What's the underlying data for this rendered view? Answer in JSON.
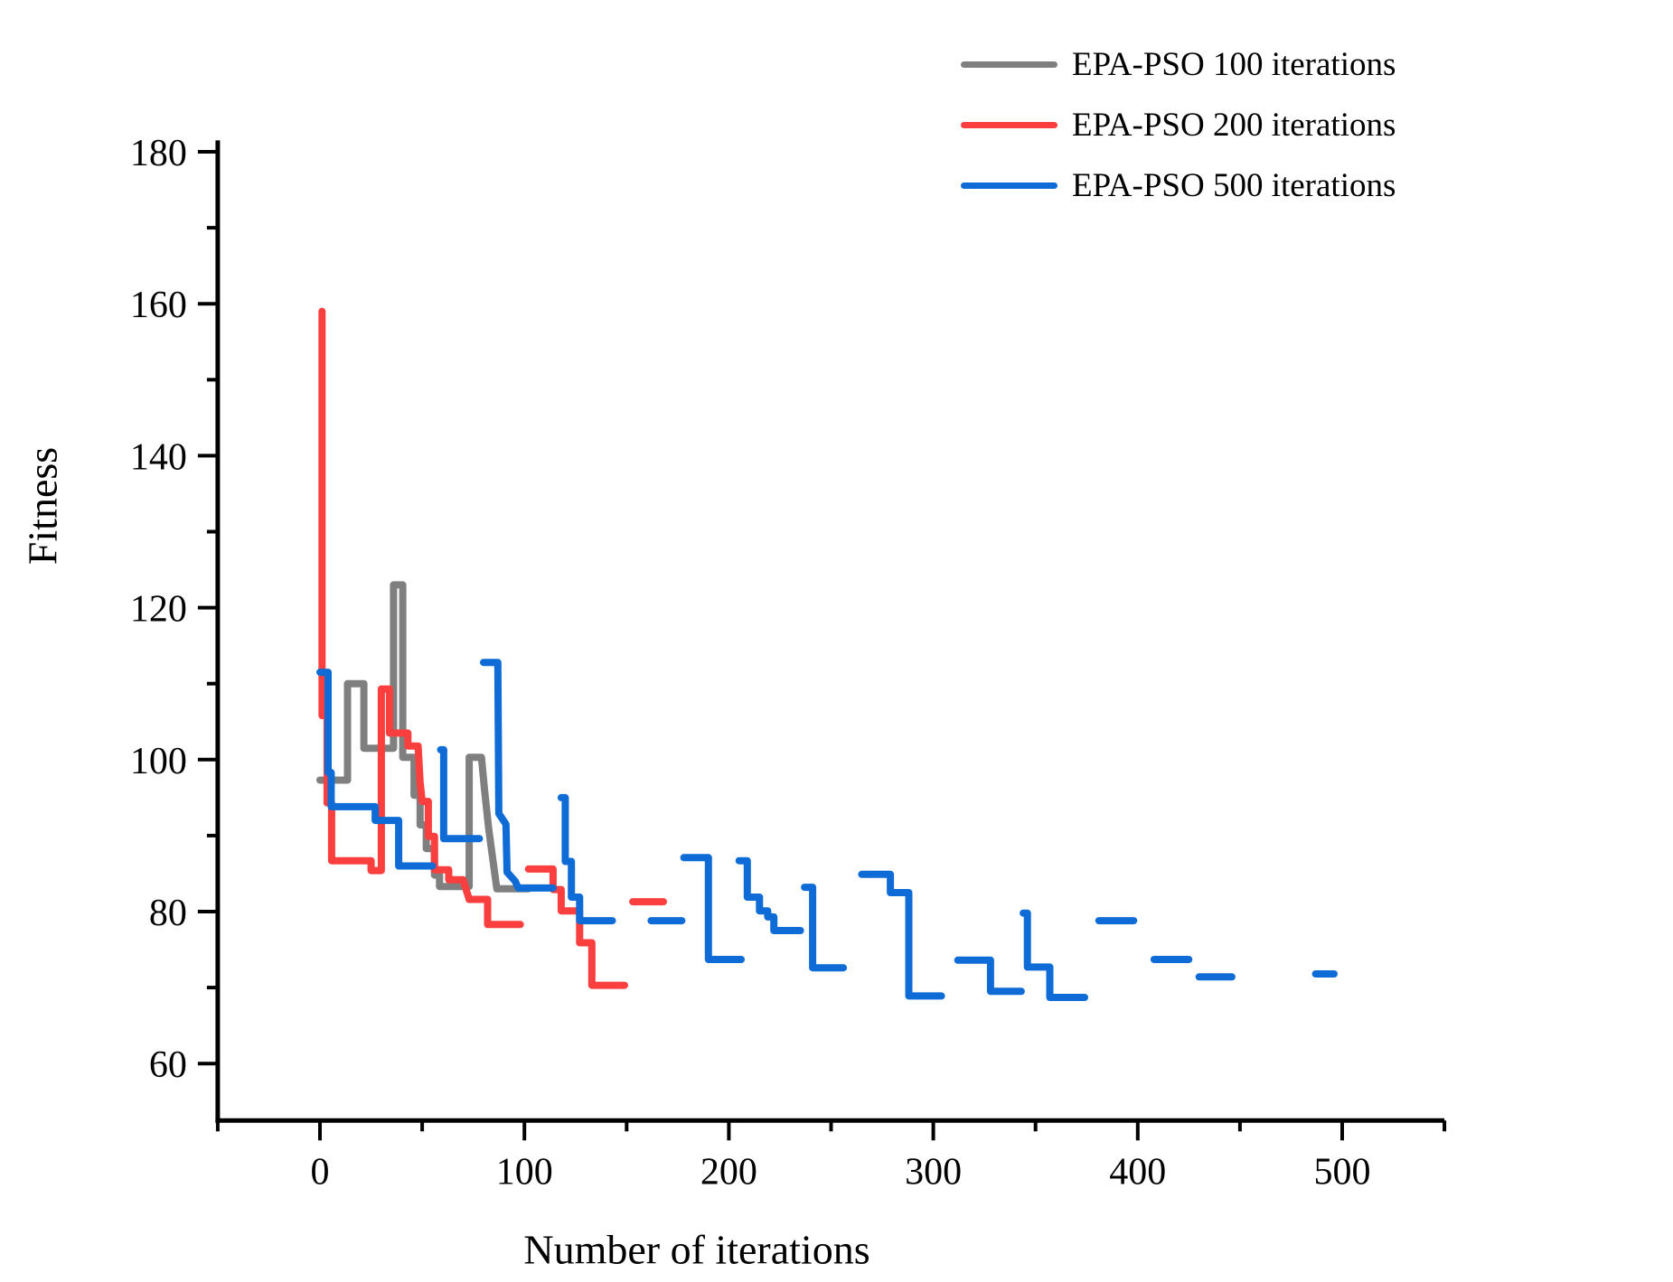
{
  "chart_data": {
    "type": "line",
    "title": "",
    "xlabel": "Number of iterations",
    "ylabel": "Fitness",
    "grid": false,
    "legend_position": "top-right",
    "x_axis": {
      "min": -50,
      "max": 550,
      "major_ticks": [
        0,
        100,
        200,
        300,
        400,
        500
      ],
      "minor_ticks": [
        -50,
        50,
        150,
        250,
        350,
        450,
        550
      ]
    },
    "y_axis": {
      "min": 52.5,
      "max": 181.5,
      "major_ticks": [
        60,
        80,
        100,
        120,
        140,
        160,
        180
      ],
      "minor_ticks": [
        70,
        90,
        110,
        130,
        150,
        170
      ]
    },
    "series": [
      {
        "name": "EPA-PSO 100 iterations",
        "color": "#7f7f7f",
        "segments": [
          [
            [
              0,
              97.3
            ],
            [
              13.5,
              97.3
            ],
            [
              13.5,
              110
            ],
            [
              21.5,
              110
            ],
            [
              21.5,
              101.5
            ],
            [
              36,
              101.5
            ],
            [
              36,
              123
            ],
            [
              40.5,
              123
            ],
            [
              40.5,
              100.3
            ],
            [
              46,
              100.3
            ],
            [
              46,
              95.3
            ],
            [
              49,
              95.3
            ],
            [
              49,
              91.4
            ],
            [
              52,
              91.4
            ],
            [
              52,
              88.3
            ],
            [
              56,
              88.3
            ],
            [
              56,
              84.8
            ],
            [
              58.5,
              84.8
            ],
            [
              58.5,
              83.3
            ],
            [
              73,
              83.3
            ],
            [
              73,
              100.3
            ],
            [
              79,
              100.3
            ],
            [
              80.5,
              96
            ],
            [
              82.5,
              91
            ],
            [
              84.5,
              87
            ],
            [
              86.5,
              83
            ],
            [
              102,
              83
            ]
          ]
        ]
      },
      {
        "name": "EPA-PSO 200 iterations",
        "color": "#fb3e3e",
        "segments": [
          [
            [
              1,
              159
            ],
            [
              1,
              105.8
            ],
            [
              3.5,
              105.8
            ],
            [
              3.5,
              94.3
            ],
            [
              5.7,
              94.3
            ],
            [
              5.7,
              86.7
            ],
            [
              25,
              86.7
            ],
            [
              25,
              85.4
            ],
            [
              30,
              85.4
            ],
            [
              30,
              109.3
            ],
            [
              34,
              109.3
            ],
            [
              34,
              103.5
            ],
            [
              43,
              103.5
            ],
            [
              43,
              101.8
            ],
            [
              48,
              101.8
            ],
            [
              49,
              97
            ],
            [
              50,
              94.5
            ],
            [
              53,
              94.5
            ],
            [
              53,
              89.9
            ],
            [
              56,
              89.9
            ],
            [
              56,
              85.5
            ],
            [
              63,
              85.5
            ],
            [
              63,
              84.2
            ],
            [
              70,
              84.2
            ],
            [
              73,
              81.6
            ],
            [
              82,
              81.6
            ],
            [
              82,
              78.3
            ],
            [
              98,
              78.3
            ]
          ],
          [
            [
              102,
              85.6
            ],
            [
              114,
              85.6
            ],
            [
              114,
              82.9
            ],
            [
              118,
              82.9
            ],
            [
              118,
              80.1
            ],
            [
              127,
              80.1
            ],
            [
              127,
              75.9
            ],
            [
              133,
              75.9
            ],
            [
              133,
              70.3
            ],
            [
              149,
              70.3
            ]
          ],
          [
            [
              153,
              81.3
            ],
            [
              168,
              81.3
            ]
          ]
        ]
      },
      {
        "name": "EPA-PSO 500 iterations",
        "color": "#0f6cd6",
        "segments": [
          [
            [
              0,
              111.5
            ],
            [
              4,
              111.5
            ],
            [
              4,
              98.3
            ],
            [
              5.5,
              98.3
            ],
            [
              5.5,
              93.8
            ],
            [
              27,
              93.8
            ],
            [
              27,
              92
            ],
            [
              38.5,
              92
            ],
            [
              38.5,
              86
            ],
            [
              55,
              86
            ]
          ],
          [
            [
              59,
              101.3
            ],
            [
              60.5,
              101.3
            ],
            [
              60.5,
              89.6
            ],
            [
              78,
              89.6
            ]
          ],
          [
            [
              80,
              112.8
            ],
            [
              87,
              112.8
            ],
            [
              87.5,
              92.9
            ],
            [
              91,
              91.5
            ],
            [
              91.5,
              85.2
            ],
            [
              95.5,
              84
            ],
            [
              97,
              83.1
            ],
            [
              114,
              83.1
            ]
          ],
          [
            [
              118,
              95
            ],
            [
              120,
              95
            ],
            [
              120,
              86.6
            ],
            [
              123,
              86.6
            ],
            [
              123,
              81.9
            ],
            [
              127,
              81.9
            ],
            [
              127,
              78.8
            ],
            [
              143,
              78.8
            ]
          ],
          [
            [
              162,
              78.8
            ],
            [
              177,
              78.8
            ]
          ],
          [
            [
              178,
              87.1
            ],
            [
              190,
              87.1
            ],
            [
              190,
              73.7
            ],
            [
              206,
              73.7
            ]
          ],
          [
            [
              205,
              86.7
            ],
            [
              209,
              86.7
            ],
            [
              209,
              81.9
            ],
            [
              215,
              81.9
            ],
            [
              215,
              80.1
            ],
            [
              219,
              80.1
            ],
            [
              219,
              79.3
            ],
            [
              222,
              79.3
            ],
            [
              222,
              77.5
            ],
            [
              235,
              77.5
            ]
          ],
          [
            [
              237,
              83.2
            ],
            [
              241,
              83.2
            ],
            [
              241,
              72.6
            ],
            [
              256,
              72.6
            ]
          ],
          [
            [
              265,
              84.9
            ],
            [
              279,
              84.9
            ],
            [
              279,
              82.5
            ],
            [
              288,
              82.5
            ],
            [
              288,
              68.9
            ],
            [
              304,
              68.9
            ]
          ],
          [
            [
              312,
              73.6
            ],
            [
              328,
              73.6
            ],
            [
              328,
              69.5
            ],
            [
              343,
              69.5
            ]
          ],
          [
            [
              344,
              79.8
            ],
            [
              346,
              79.8
            ],
            [
              346,
              72.7
            ],
            [
              357,
              72.7
            ],
            [
              357,
              68.7
            ],
            [
              374,
              68.7
            ]
          ],
          [
            [
              381,
              78.8
            ],
            [
              398,
              78.8
            ]
          ],
          [
            [
              408,
              73.7
            ],
            [
              425,
              73.7
            ]
          ],
          [
            [
              430,
              71.4
            ],
            [
              446,
              71.4
            ]
          ],
          [
            [
              487,
              71.8
            ],
            [
              496,
              71.8
            ]
          ]
        ]
      }
    ]
  }
}
